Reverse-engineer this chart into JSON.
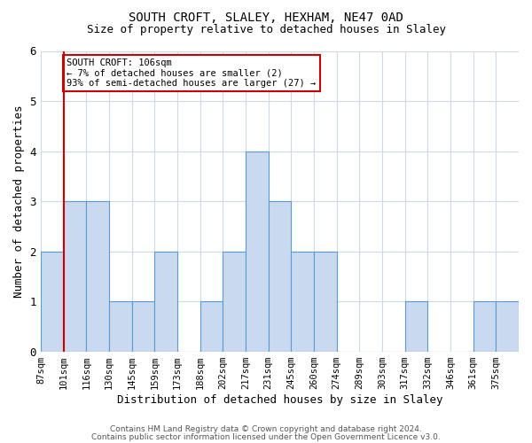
{
  "title1": "SOUTH CROFT, SLALEY, HEXHAM, NE47 0AD",
  "title2": "Size of property relative to detached houses in Slaley",
  "xlabel": "Distribution of detached houses by size in Slaley",
  "ylabel": "Number of detached properties",
  "bin_labels": [
    "87sqm",
    "101sqm",
    "116sqm",
    "130sqm",
    "145sqm",
    "159sqm",
    "173sqm",
    "188sqm",
    "202sqm",
    "217sqm",
    "231sqm",
    "245sqm",
    "260sqm",
    "274sqm",
    "289sqm",
    "303sqm",
    "317sqm",
    "332sqm",
    "346sqm",
    "361sqm",
    "375sqm"
  ],
  "counts": [
    2,
    3,
    3,
    1,
    1,
    2,
    0,
    1,
    2,
    4,
    3,
    2,
    2,
    0,
    0,
    0,
    1,
    0,
    0,
    1,
    1
  ],
  "bar_color": "#c9d9f0",
  "bar_edge_color": "#5b9bd5",
  "red_line_bin": 1,
  "red_line_color": "#cc0000",
  "ylim": [
    0,
    6
  ],
  "yticks": [
    0,
    1,
    2,
    3,
    4,
    5,
    6
  ],
  "annotation_text": "SOUTH CROFT: 106sqm\n← 7% of detached houses are smaller (2)\n93% of semi-detached houses are larger (27) →",
  "annotation_box_color": "#ffffff",
  "annotation_box_edge_color": "#cc0000",
  "footer_text1": "Contains HM Land Registry data © Crown copyright and database right 2024.",
  "footer_text2": "Contains public sector information licensed under the Open Government Licence v3.0.",
  "background_color": "#ffffff",
  "grid_color": "#d0d8e8"
}
